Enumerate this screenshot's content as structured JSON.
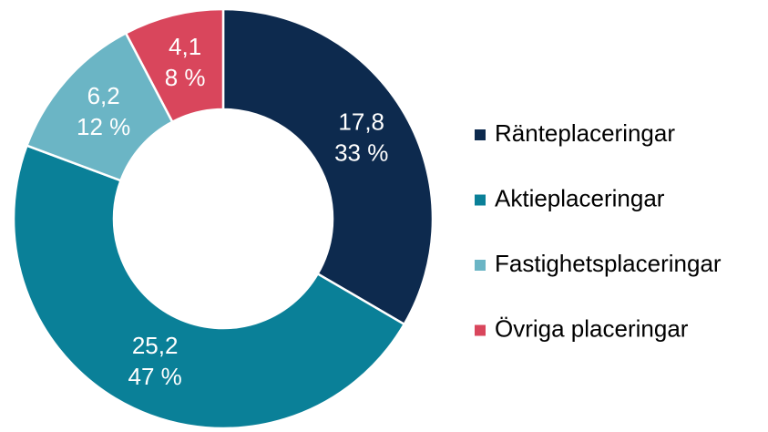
{
  "chart_data": {
    "type": "donut",
    "categories": [
      "Ränteplaceringar",
      "Aktieplaceringar",
      "Fastighetsplaceringar",
      "Övriga placeringar"
    ],
    "values": [
      17.8,
      25.2,
      6.2,
      4.1
    ],
    "value_labels": [
      "17,8",
      "25,2",
      "6,2",
      "4,1"
    ],
    "percent_values": [
      33,
      47,
      12,
      8
    ],
    "percent_labels": [
      "33 %",
      "47 %",
      "12 %",
      "8 %"
    ],
    "colors": [
      "#0d2a4e",
      "#0a8098",
      "#6bb5c5",
      "#d9465c"
    ],
    "legend": "right"
  }
}
